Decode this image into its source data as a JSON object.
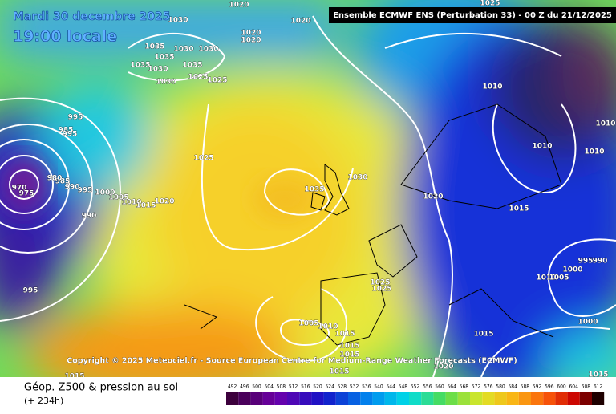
{
  "header": {
    "date": "Mardi 30 decembre 2025",
    "time": "19:00 locale",
    "run": "Ensemble ECMWF ENS  (Perturbation 33)  -  00 Z du 21/12/2025"
  },
  "copyright": "Copyright © 2025 Meteociel.fr - Source European Centre for Medium-Range Weather Forecasts (ECMWF)",
  "footer": {
    "title": "Géop. Z500 & pression au sol",
    "lead": "(+ 234h)"
  },
  "scale": [
    492,
    496,
    500,
    504,
    508,
    512,
    516,
    520,
    524,
    528,
    532,
    536,
    540,
    544,
    548,
    552,
    556,
    560,
    564,
    568,
    572,
    576,
    580,
    584,
    588,
    592,
    596,
    600,
    604,
    608,
    612
  ],
  "isobar_labels": [
    "1030",
    "1020",
    "1035",
    "1035",
    "1030",
    "1030",
    "1035",
    "1030",
    "1035",
    "1025",
    "1025",
    "1030",
    "1020",
    "1020",
    "1020",
    "1025",
    "1010",
    "1010",
    "1010",
    "1010",
    "995",
    "985",
    "995",
    "985",
    "990",
    "995",
    "1000",
    "1005",
    "1010",
    "1015",
    "1020",
    "980",
    "970",
    "975",
    "990",
    "995",
    "1025",
    "1030",
    "1035",
    "1020",
    "1015",
    "1000",
    "995",
    "990",
    "1010",
    "1005",
    "1025",
    "1025",
    "1005",
    "1010",
    "1015",
    "1015",
    "1015",
    "1015",
    "1015",
    "1020",
    "1015",
    "1015",
    "1000"
  ]
}
